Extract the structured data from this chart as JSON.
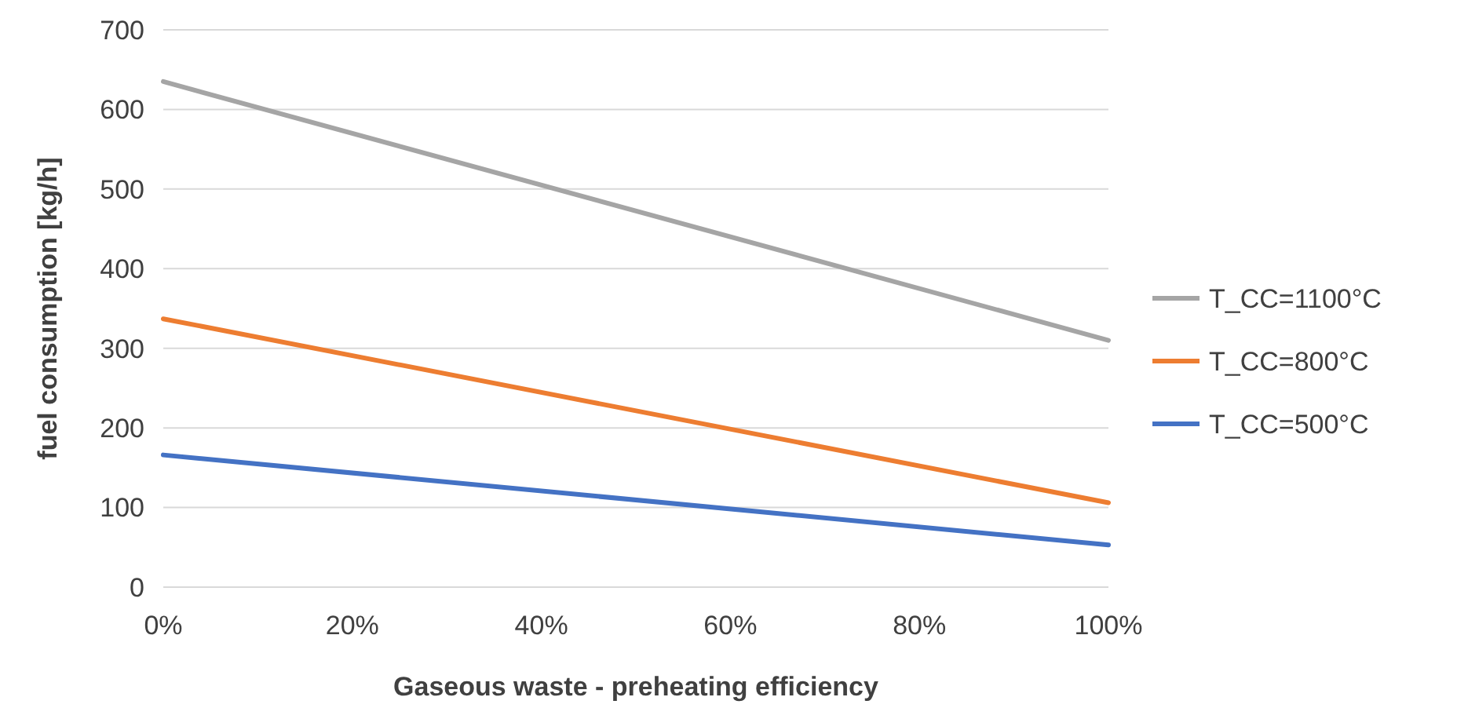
{
  "chart_data": {
    "type": "line",
    "xlabel": "Gaseous waste - preheating efficiency",
    "ylabel": "fuel consumption [kg/h]",
    "x": [
      0,
      100
    ],
    "series": [
      {
        "name": "T_CC=1100°C",
        "color": "#a5a5a5",
        "values": [
          635,
          310
        ]
      },
      {
        "name": "T_CC=800°C",
        "color": "#ed7d31",
        "values": [
          337,
          106
        ]
      },
      {
        "name": "T_CC=500°C",
        "color": "#4472c4",
        "values": [
          166,
          53
        ]
      }
    ],
    "xlim": [
      0,
      100
    ],
    "xticks": [
      {
        "value": 0,
        "label": "0%"
      },
      {
        "value": 20,
        "label": "20%"
      },
      {
        "value": 40,
        "label": "40%"
      },
      {
        "value": 60,
        "label": "60%"
      },
      {
        "value": 80,
        "label": "80%"
      },
      {
        "value": 100,
        "label": "100%"
      }
    ],
    "ylim": [
      0,
      700
    ],
    "yticks": [
      0,
      100,
      200,
      300,
      400,
      500,
      600,
      700
    ],
    "grid": "y",
    "legend": "right",
    "marker": "none",
    "line_style": "solid"
  }
}
